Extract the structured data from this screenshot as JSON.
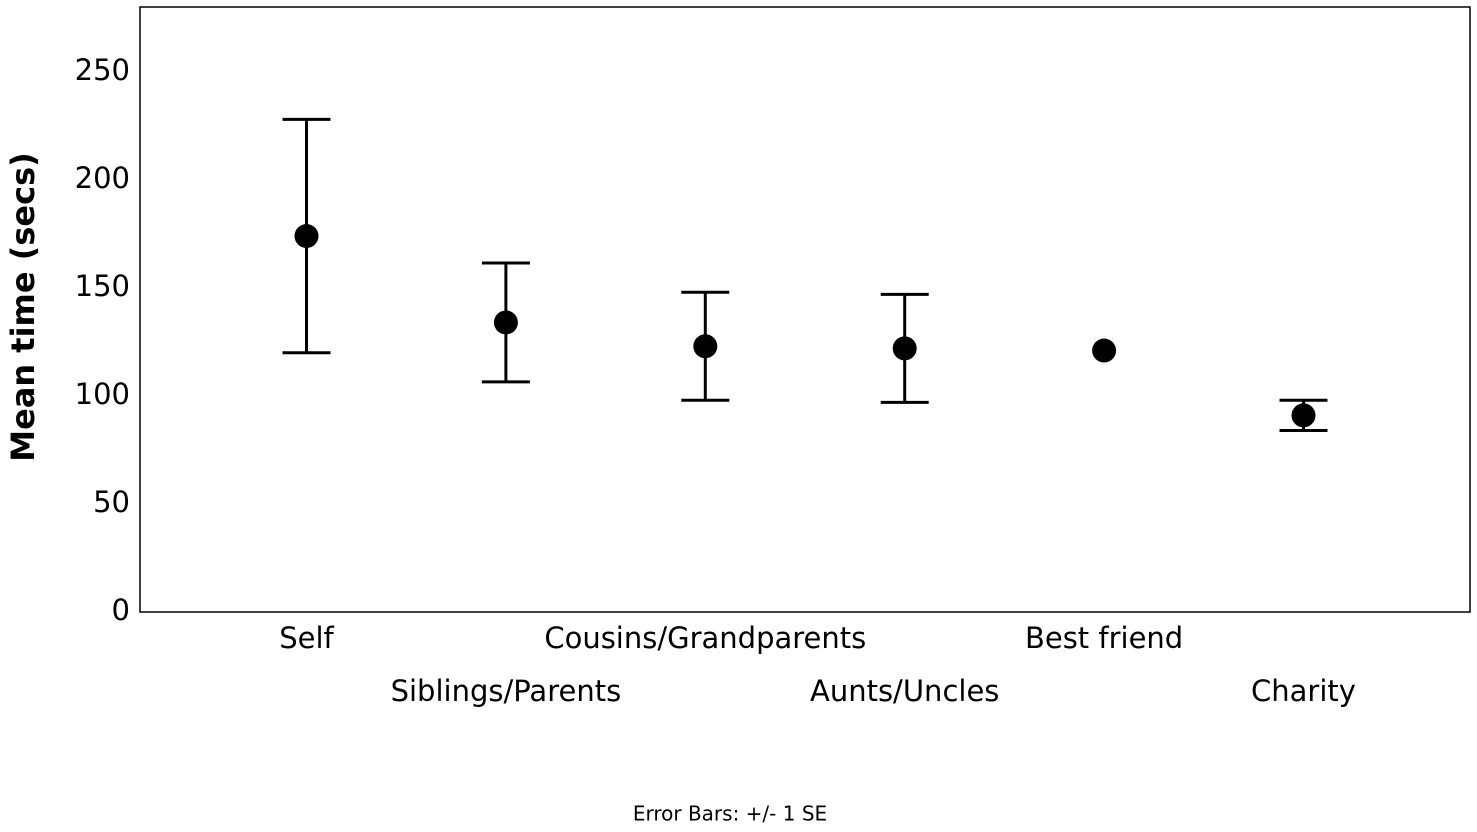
{
  "chart_data": {
    "type": "errorbar",
    "y_label": "Mean time (secs)",
    "note": "Error Bars: +/- 1 SE",
    "categories": [
      "Self",
      "Siblings/Parents",
      "Cousins/Grandparents",
      "Aunts/Uncles",
      "Best friend",
      "Charity"
    ],
    "values": [
      174,
      134,
      123,
      122,
      121,
      91
    ],
    "errors": [
      54,
      27.5,
      25,
      25,
      null,
      7
    ],
    "color": "#000000",
    "ylim": [
      0,
      280
    ],
    "yticks": [
      0,
      50,
      100,
      150,
      200,
      250
    ],
    "grid": false
  }
}
